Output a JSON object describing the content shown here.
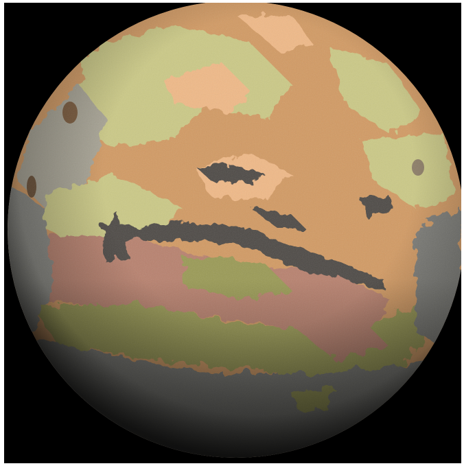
{
  "image": {
    "subject": "planet Mars",
    "background_color": "#000000",
    "frame_color": "#ffffff",
    "colors": {
      "ochre": "#d29a63",
      "pale_yellow_green": "#cbc986",
      "peach": "#f0b987",
      "salmon_pink": "#b8816e",
      "olive": "#9a9a55",
      "gray": "#7d7d78",
      "dark_gray": "#3f3f3e",
      "canyon": "#4d4944"
    }
  }
}
